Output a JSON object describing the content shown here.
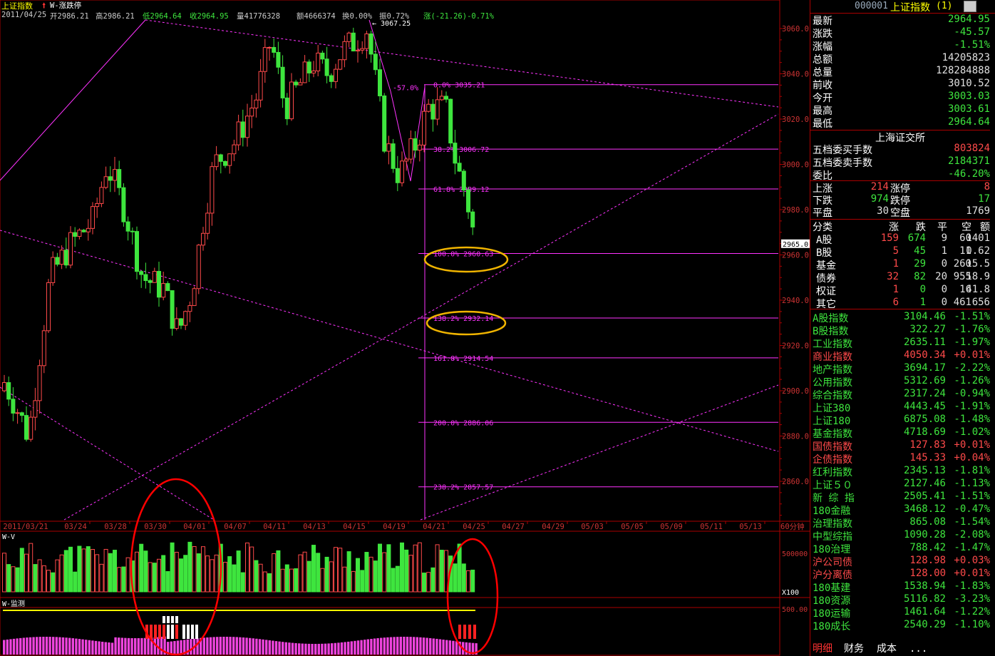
{
  "info_bar": {
    "index_name": "上证指数",
    "indicator": "W-涨跌停",
    "date": "2011/04/25",
    "open": "开2986.21",
    "high": "高2986.21",
    "low": "低2964.64",
    "close": "收2964.95",
    "volume": "量41776328",
    "amount": "额4666374",
    "turnover": "换0.00%",
    "amplitude": "振0.72%",
    "change": "涨(-21.26)-0.71%"
  },
  "chart_data": [
    {
      "type": "candlestick",
      "title": "上证指数",
      "x": [
        "2011/03/21",
        "03/24",
        "03/28",
        "03/30",
        "04/01",
        "04/07",
        "04/11",
        "04/13",
        "04/15",
        "04/19",
        "04/21",
        "04/25",
        "04/27",
        "04/29",
        "05/03",
        "05/05",
        "05/09",
        "05/11",
        "05/13"
      ],
      "y_ticks": [
        3060.0,
        3040.0,
        3020.0,
        3000.0,
        2980.0,
        2960.0,
        2940.0,
        2920.0,
        2900.0,
        2880.0,
        2860.0
      ],
      "ylim": [
        2842,
        3067
      ],
      "current_price_tag": "2965.0",
      "peak_label": "3067.25",
      "fib_levels": [
        {
          "pct": "0.0%",
          "value": "3035.21"
        },
        {
          "pct": "38.2%",
          "value": "3006.72"
        },
        {
          "pct": "61.8%",
          "value": "2989.12"
        },
        {
          "pct": "100.0%",
          "value": "2960.63"
        },
        {
          "pct": "138.2%",
          "value": "2932.14"
        },
        {
          "pct": "161.8%",
          "value": "2914.54"
        },
        {
          "pct": "200.0%",
          "value": "2886.06"
        },
        {
          "pct": "238.2%",
          "value": "2857.57"
        }
      ],
      "swing_label": "-57.0%",
      "period": "60分钟"
    },
    {
      "type": "bar",
      "title": "W-V",
      "y_ticks": [
        "500000"
      ],
      "unit": "X100"
    },
    {
      "type": "bar",
      "title": "W-监测",
      "y_ticks": [
        "500.00"
      ]
    }
  ],
  "quote": {
    "code": "000001",
    "name": "上证指数",
    "suffix": "(1)",
    "rows": [
      {
        "label": "最新",
        "value": "2964.95",
        "color": "grn"
      },
      {
        "label": "涨跌",
        "value": "-45.57",
        "color": "grn"
      },
      {
        "label": "涨幅",
        "value": "-1.51%",
        "color": "grn"
      },
      {
        "label": "总额",
        "value": "14205823",
        "color": "wht"
      },
      {
        "label": "总量",
        "value": "128284888",
        "color": "wht"
      },
      {
        "label": "前收",
        "value": "3010.52",
        "color": "wht"
      },
      {
        "label": "今开",
        "value": "3003.03",
        "color": "grn"
      },
      {
        "label": "最高",
        "value": "3003.61",
        "color": "grn"
      },
      {
        "label": "最低",
        "value": "2964.64",
        "color": "grn"
      }
    ]
  },
  "exchange": {
    "title": "上海证交所",
    "rows": [
      {
        "label": "五档委买手数",
        "value": "803824",
        "color": "red"
      },
      {
        "label": "五档委卖手数",
        "value": "2184371",
        "color": "grn"
      },
      {
        "label": "委比",
        "value": "-46.20%",
        "color": "grn"
      }
    ],
    "updown": [
      {
        "l1": "上涨",
        "v1": "214",
        "c1": "red",
        "l2": "涨停",
        "v2": "8",
        "c2": "red"
      },
      {
        "l1": "下跌",
        "v1": "974",
        "c1": "grn",
        "l2": "跌停",
        "v2": "17",
        "c2": "grn"
      },
      {
        "l1": "平盘",
        "v1": "30",
        "c1": "wht",
        "l2": "空盘",
        "v2": "1769",
        "c2": "wht"
      }
    ]
  },
  "categories": {
    "headers": [
      "分类",
      "涨",
      "跌",
      "平",
      "空",
      "额"
    ],
    "rows": [
      [
        "A股",
        "159",
        "674",
        "9",
        "60",
        "1401"
      ],
      [
        "B股",
        "5",
        "45",
        "1",
        "11",
        "0.62"
      ],
      [
        "基金",
        "1",
        "29",
        "0",
        "260",
        "15.5"
      ],
      [
        "债券",
        "32",
        "82",
        "20",
        "955",
        "18.9"
      ],
      [
        "权证",
        "1",
        "0",
        "0",
        "16",
        "41.8"
      ],
      [
        "其它",
        "6",
        "1",
        "0",
        "461",
        "656"
      ]
    ]
  },
  "indices": [
    {
      "name": "A股指数",
      "value": "3104.46",
      "pct": "-1.51%",
      "color": "grn"
    },
    {
      "name": "B股指数",
      "value": "322.27",
      "pct": "-1.76%",
      "color": "grn"
    },
    {
      "name": "工业指数",
      "value": "2635.11",
      "pct": "-1.97%",
      "color": "grn"
    },
    {
      "name": "商业指数",
      "value": "4050.34",
      "pct": "+0.01%",
      "color": "red"
    },
    {
      "name": "地产指数",
      "value": "3694.17",
      "pct": "-2.22%",
      "color": "grn"
    },
    {
      "name": "公用指数",
      "value": "5312.69",
      "pct": "-1.26%",
      "color": "grn"
    },
    {
      "name": "综合指数",
      "value": "2317.24",
      "pct": "-0.94%",
      "color": "grn"
    },
    {
      "name": "上证380",
      "value": "4443.45",
      "pct": "-1.91%",
      "color": "grn"
    },
    {
      "name": "上证180",
      "value": "6875.08",
      "pct": "-1.48%",
      "color": "grn"
    },
    {
      "name": "基金指数",
      "value": "4718.69",
      "pct": "-1.02%",
      "color": "grn"
    },
    {
      "name": "国债指数",
      "value": "127.83",
      "pct": "+0.01%",
      "color": "red"
    },
    {
      "name": "企债指数",
      "value": "145.33",
      "pct": "+0.04%",
      "color": "red"
    },
    {
      "name": "红利指数",
      "value": "2345.13",
      "pct": "-1.81%",
      "color": "grn"
    },
    {
      "name": "上证５０",
      "value": "2127.46",
      "pct": "-1.13%",
      "color": "grn"
    },
    {
      "name": "新 综 指",
      "value": "2505.41",
      "pct": "-1.51%",
      "color": "grn"
    },
    {
      "name": "180金融",
      "value": "3468.12",
      "pct": "-0.47%",
      "color": "grn"
    },
    {
      "name": "治理指数",
      "value": "865.08",
      "pct": "-1.54%",
      "color": "grn"
    },
    {
      "name": "中型综指",
      "value": "1090.28",
      "pct": "-2.08%",
      "color": "grn"
    },
    {
      "name": "180治理",
      "value": "788.42",
      "pct": "-1.47%",
      "color": "grn"
    },
    {
      "name": "沪公司债",
      "value": "128.98",
      "pct": "+0.03%",
      "color": "red"
    },
    {
      "name": "沪分离债",
      "value": "128.00",
      "pct": "+0.01%",
      "color": "red"
    },
    {
      "name": "180基建",
      "value": "1538.94",
      "pct": "-1.83%",
      "color": "grn"
    },
    {
      "name": "180资源",
      "value": "5116.82",
      "pct": "-3.23%",
      "color": "grn"
    },
    {
      "name": "180运输",
      "value": "1461.64",
      "pct": "-1.22%",
      "color": "grn"
    },
    {
      "name": "180成长",
      "value": "2540.29",
      "pct": "-1.10%",
      "color": "grn"
    }
  ],
  "tabs": [
    "明细",
    "财务",
    "成本",
    "..."
  ],
  "colors": {
    "up": "#ff4a4a",
    "down": "#3ee53e",
    "fib": "#ff33ff",
    "border": "#aa0000",
    "accent": "#ffff00",
    "circle_orange": "#f0b400",
    "circle_red": "#ff0000"
  }
}
